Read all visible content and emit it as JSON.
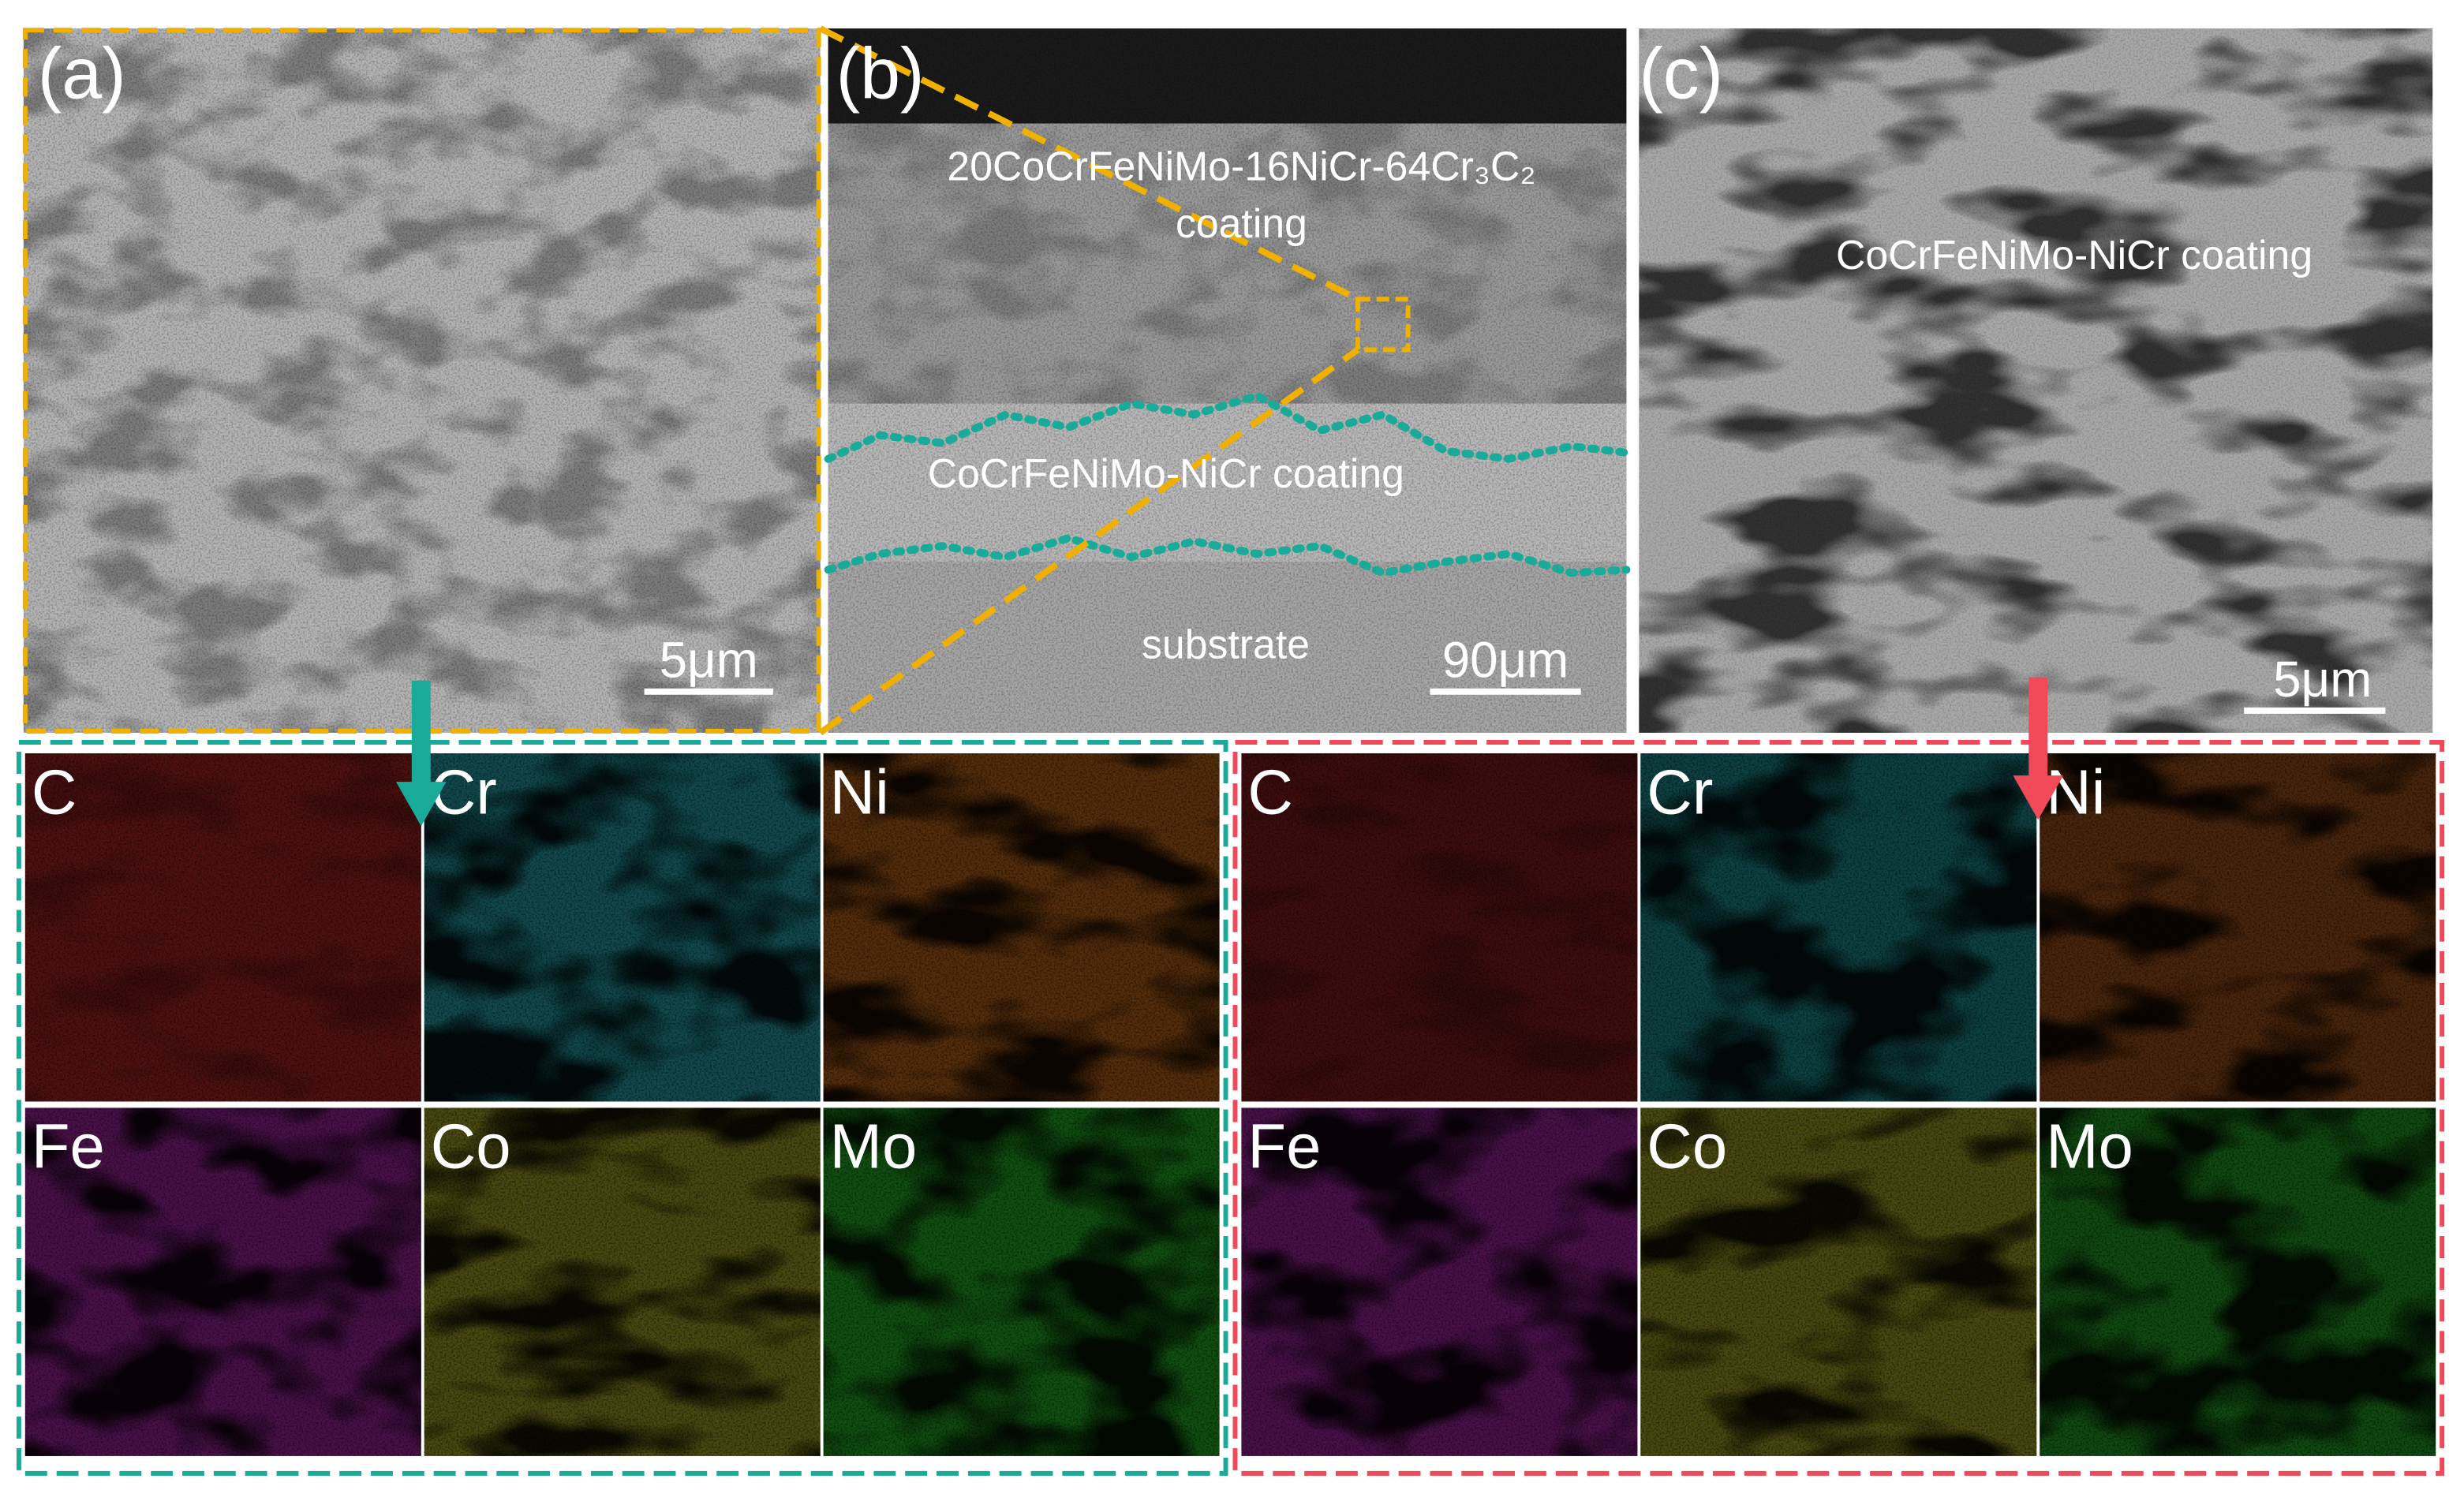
{
  "panels": [
    {
      "label": "(a)",
      "scale_bar": "5μm"
    },
    {
      "label": "(b)",
      "scale_bar": "90μm",
      "annotations": [
        "20CoCrFeNiMo-16NiCr-64Cr₃C₂",
        "coating",
        "CoCrFeNiMo-NiCr coating",
        "substrate"
      ]
    },
    {
      "label": "(c)",
      "scale_bar": "5μm",
      "annotations": [
        "CoCrFeNiMo-NiCr  coating"
      ]
    }
  ],
  "maps": [
    {
      "elements": [
        {
          "label": "C",
          "color": "#d42020"
        },
        {
          "label": "Cr",
          "color": "#20c0cc"
        },
        {
          "label": "Ni",
          "color": "#e07010"
        },
        {
          "label": "Fe",
          "color": "#c020c0"
        },
        {
          "label": "Co",
          "color": "#c0c020"
        },
        {
          "label": "Mo",
          "color": "#20d020"
        }
      ]
    },
    {
      "elements": [
        {
          "label": "C",
          "color": "#a01818"
        },
        {
          "label": "Cr",
          "color": "#18a8b0"
        },
        {
          "label": "Ni",
          "color": "#c05810"
        },
        {
          "label": "Fe",
          "color": "#c020c0"
        },
        {
          "label": "Co",
          "color": "#c0c020"
        },
        {
          "label": "Mo",
          "color": "#20c020"
        }
      ]
    }
  ]
}
